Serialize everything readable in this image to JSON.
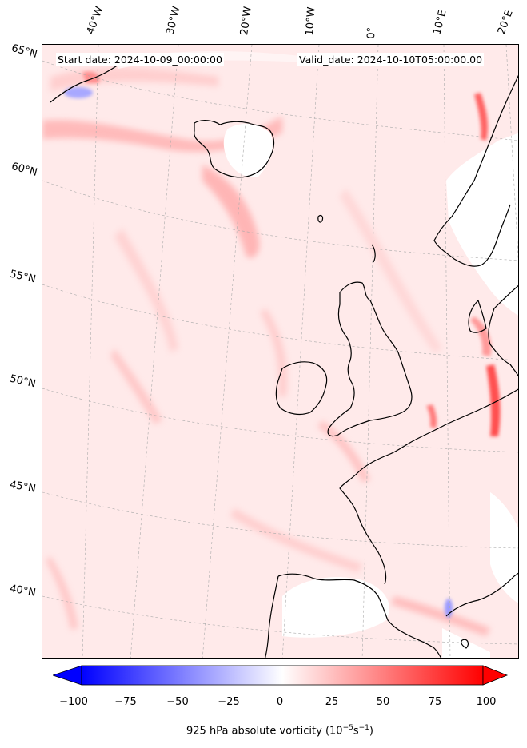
{
  "map": {
    "start_date": "Start date: 2024-10-09_00:00:00",
    "valid_date": "Valid_date: 2024-10-10T05:00:00.00",
    "longitude_labels": [
      "40°W",
      "30°W",
      "20°W",
      "10°W",
      "0°",
      "10°E",
      "20°E"
    ],
    "latitude_labels": [
      "65°N",
      "60°N",
      "55°N",
      "50°N",
      "45°N",
      "40°N"
    ]
  },
  "colorbar": {
    "label_prefix": "925 hPa absolute vorticity (10",
    "label_exp1": "−5",
    "label_mid": "s",
    "label_exp2": "−1",
    "label_suffix": ")",
    "ticks": [
      "−100",
      "−75",
      "−50",
      "−25",
      "0",
      "25",
      "50",
      "75",
      "100"
    ],
    "min": -100,
    "max": 100,
    "low_color": "#0000ff",
    "mid_color": "#ffffff",
    "high_color": "#ff0000"
  }
}
